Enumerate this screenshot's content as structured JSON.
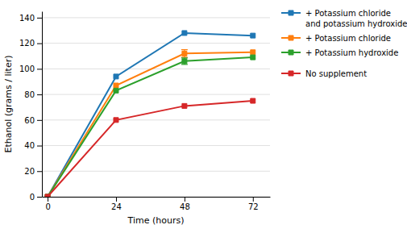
{
  "chart_data": {
    "type": "line",
    "x": [
      0,
      24,
      48,
      72
    ],
    "series": [
      {
        "name": "+ Potassium chloride\nand potassium hydroxide",
        "values": [
          0,
          94,
          128,
          126
        ],
        "yerr": [
          null,
          null,
          null,
          null
        ],
        "marker": "square"
      },
      {
        "name": "+ Potassium chloride",
        "values": [
          0,
          87,
          112,
          113
        ],
        "yerr": [
          null,
          null,
          3.0,
          null
        ],
        "marker": "square"
      },
      {
        "name": "+ Potassium hydroxide",
        "values": [
          0,
          83,
          106,
          109
        ],
        "yerr": [
          null,
          null,
          2.5,
          null
        ],
        "marker": "square"
      },
      {
        "name": "No supplement",
        "values": [
          0,
          60,
          71,
          75
        ],
        "yerr": [
          null,
          null,
          null,
          null
        ],
        "marker": "square"
      }
    ],
    "xlabel": "Time (hours)",
    "ylabel": "Ethanol (grams / liter)",
    "xlim": [
      -2,
      78
    ],
    "ylim": [
      0,
      145
    ],
    "xticks": [
      0,
      24,
      48,
      72
    ],
    "yticks": [
      0,
      20,
      40,
      60,
      80,
      100,
      120,
      140
    ],
    "grid": "y",
    "legend": "right"
  }
}
